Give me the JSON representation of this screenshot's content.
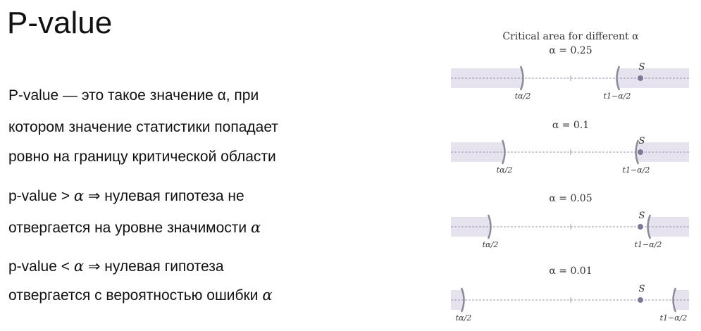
{
  "slide": {
    "title": "P-value",
    "definition": [
      "P-value — это такое значение α, при",
      "котором значение статистики попадает",
      "ровно на границу критической области"
    ],
    "rule_greater": {
      "prefix": "p-value > ",
      "alpha": "α",
      "arrow": " ⇒ нулевая гипотеза не",
      "line2": "отвергается на уровне значимости ",
      "alpha2": "α"
    },
    "rule_less": {
      "prefix": "p-value < ",
      "alpha": "α",
      "arrow": " ⇒ нулевая гипотеза",
      "line2": "отвергается с вероятностью ошибки ",
      "alpha2": "α"
    }
  },
  "figure": {
    "title": "Critical area for different α",
    "statistic_label": "S",
    "left_bound_label": "tα/2",
    "right_bound_label": "t1−α/2",
    "shade_color": "#e6e3ef",
    "bound_color": "#8a8a9a",
    "point_color": "#7d7a99",
    "panels": [
      {
        "label": "α = 0.25"
      },
      {
        "label": "α = 0.1"
      },
      {
        "label": "α = 0.05"
      },
      {
        "label": "α = 0.01"
      }
    ]
  }
}
